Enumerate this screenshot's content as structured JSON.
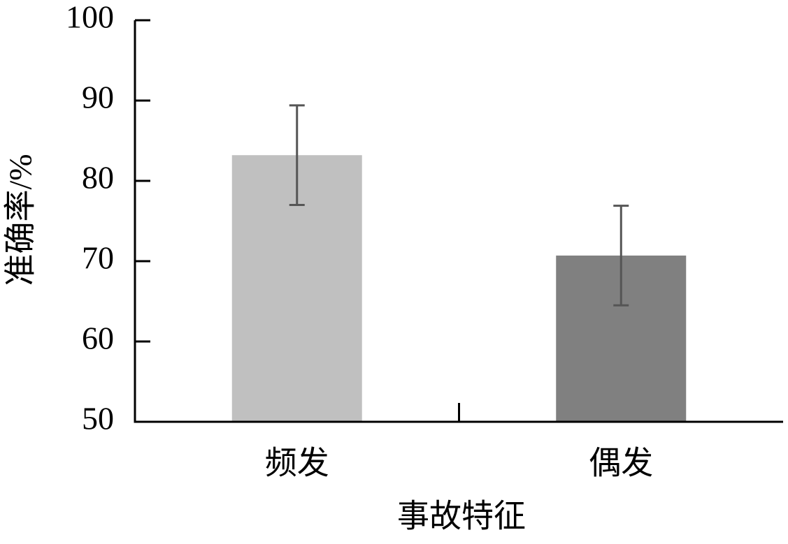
{
  "chart_data": {
    "type": "bar",
    "categories": [
      "频发",
      "偶发"
    ],
    "values": [
      83.2,
      70.7
    ],
    "errors": [
      6.2,
      6.2
    ],
    "colors": [
      "#c0c0c0",
      "#808080"
    ],
    "error_color": "#555555",
    "xlabel": "事故特征",
    "ylabel": "准确率/%",
    "ylim": [
      50,
      100
    ],
    "yticks": [
      50,
      60,
      70,
      80,
      90,
      100
    ],
    "grid": false
  }
}
